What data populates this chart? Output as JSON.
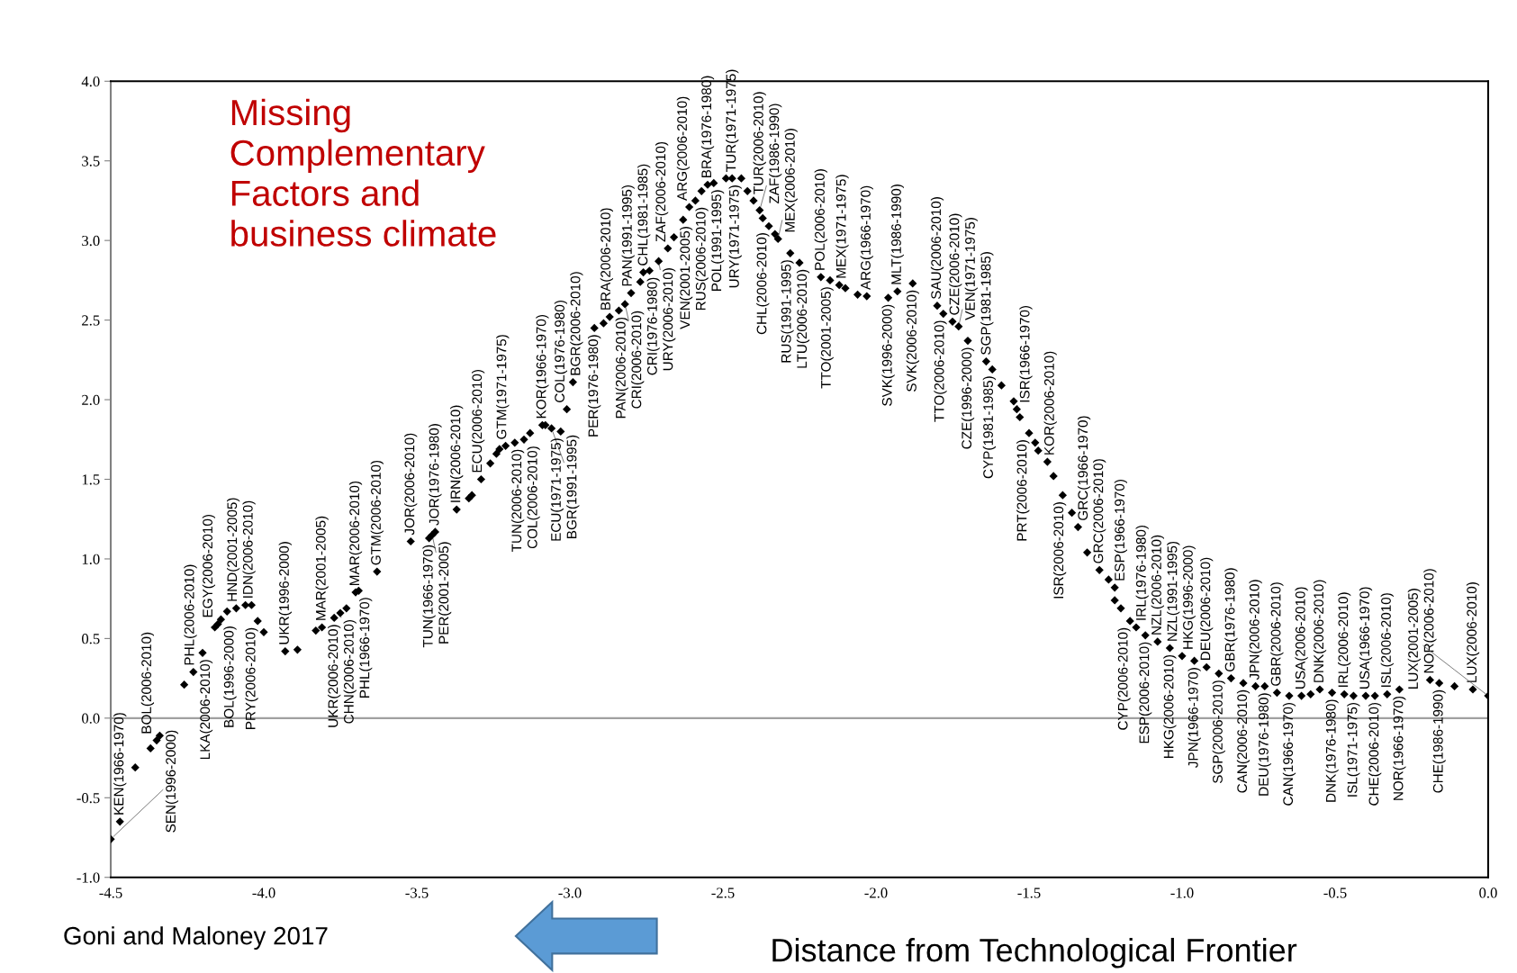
{
  "chart_data": {
    "type": "scatter",
    "xlabel": "Distance from Technological Frontier",
    "marker": "diamond",
    "grid": false,
    "legend": false,
    "xlim": [
      -4.5,
      0.0
    ],
    "xticks": [
      -4.5,
      {
        "value": -4,
        "label": "-4.0"
      },
      -3.5,
      {
        "value": -3,
        "label": "-3.0"
      },
      -2.5,
      {
        "value": -2,
        "label": "-2.0"
      },
      -1.5,
      {
        "value": -1,
        "label": "-1.0"
      },
      -0.5,
      {
        "value": 0,
        "label": "0.0"
      }
    ],
    "ylim": [
      -1.0,
      4.0
    ],
    "yticks": [
      {
        "value": -1,
        "label": "-1.0"
      },
      -0.5,
      {
        "value": 0,
        "label": "0.0"
      },
      0.5,
      {
        "value": 1,
        "label": "1.0"
      },
      1.5,
      {
        "value": 2,
        "label": "2.0"
      },
      2.5,
      {
        "value": 3,
        "label": "3.0"
      },
      3.5,
      {
        "value": 4,
        "label": "4.0"
      }
    ],
    "ref_lines": [
      {
        "axis": "y",
        "value": 0,
        "color": "#a0a0a0"
      }
    ],
    "series": [
      {
        "color": "#000000",
        "x": [
          -4.5,
          -4.47,
          -4.42,
          -4.37,
          -4.35,
          -4.34,
          -4.26,
          -4.23,
          -4.2,
          -4.16,
          -4.15,
          -4.14,
          -4.12,
          -4.09,
          -4.06,
          -4.04,
          -4.02,
          -4.0,
          -3.93,
          -3.89,
          -3.83,
          -3.81,
          -3.77,
          -3.75,
          -3.73,
          -3.7,
          -3.69,
          -3.63,
          -3.52,
          -3.46,
          -3.45,
          -3.44,
          -3.37,
          -3.33,
          -3.32,
          -3.29,
          -3.26,
          -3.24,
          -3.23,
          -3.21,
          -3.18,
          -3.15,
          -3.13,
          -3.09,
          -3.08,
          -3.06,
          -3.03,
          -3.01,
          -2.99,
          -2.92,
          -2.89,
          -2.87,
          -2.84,
          -2.82,
          -2.8,
          -2.77,
          -2.76,
          -2.74,
          -2.71,
          -2.68,
          -2.66,
          -2.63,
          -2.61,
          -2.59,
          -2.57,
          -2.55,
          -2.53,
          -2.49,
          -2.47,
          -2.44,
          -2.42,
          -2.4,
          -2.38,
          -2.37,
          -2.35,
          -2.33,
          -2.32,
          -2.28,
          -2.25,
          -2.18,
          -2.15,
          -2.12,
          -2.1,
          -2.06,
          -2.03,
          -1.96,
          -1.93,
          -1.88,
          -1.8,
          -1.78,
          -1.75,
          -1.73,
          -1.7,
          -1.64,
          -1.62,
          -1.59,
          -1.55,
          -1.54,
          -1.53,
          -1.5,
          -1.48,
          -1.47,
          -1.44,
          -1.42,
          -1.39,
          -1.36,
          -1.34,
          -1.31,
          -1.27,
          -1.24,
          -1.22,
          -1.22,
          -1.2,
          -1.17,
          -1.15,
          -1.12,
          -1.08,
          -1.04,
          -1.0,
          -0.96,
          -0.92,
          -0.88,
          -0.84,
          -0.8,
          -0.76,
          -0.73,
          -0.69,
          -0.65,
          -0.61,
          -0.58,
          -0.55,
          -0.51,
          -0.47,
          -0.44,
          -0.4,
          -0.37,
          -0.33,
          -0.29,
          -0.19,
          -0.16,
          -0.11,
          -0.05,
          0.0
        ],
        "values": [
          -0.76,
          -0.65,
          -0.31,
          -0.19,
          -0.14,
          -0.11,
          0.21,
          0.29,
          0.41,
          0.57,
          0.59,
          0.62,
          0.67,
          0.69,
          0.71,
          0.71,
          0.61,
          0.54,
          0.42,
          0.43,
          0.55,
          0.57,
          0.63,
          0.66,
          0.69,
          0.79,
          0.8,
          0.92,
          1.11,
          1.13,
          1.15,
          1.17,
          1.31,
          1.38,
          1.4,
          1.5,
          1.6,
          1.66,
          1.69,
          1.71,
          1.73,
          1.75,
          1.79,
          1.84,
          1.84,
          1.82,
          1.8,
          1.94,
          2.11,
          2.45,
          2.48,
          2.52,
          2.56,
          2.6,
          2.67,
          2.74,
          2.8,
          2.81,
          2.87,
          2.95,
          3.02,
          3.13,
          3.21,
          3.25,
          3.31,
          3.35,
          3.36,
          3.39,
          3.39,
          3.39,
          3.31,
          3.25,
          3.19,
          3.14,
          3.09,
          3.04,
          3.01,
          2.92,
          2.86,
          2.77,
          2.75,
          2.72,
          2.7,
          2.66,
          2.65,
          2.64,
          2.68,
          2.73,
          2.59,
          2.54,
          2.49,
          2.46,
          2.37,
          2.24,
          2.19,
          2.09,
          1.99,
          1.94,
          1.89,
          1.79,
          1.73,
          1.68,
          1.61,
          1.52,
          1.4,
          1.29,
          1.2,
          1.04,
          0.93,
          0.87,
          0.82,
          0.74,
          0.69,
          0.61,
          0.57,
          0.52,
          0.48,
          0.44,
          0.39,
          0.36,
          0.32,
          0.28,
          0.25,
          0.22,
          0.2,
          0.2,
          0.16,
          0.14,
          0.14,
          0.15,
          0.18,
          0.16,
          0.15,
          0.14,
          0.14,
          0.14,
          0.15,
          0.18,
          0.24,
          0.22,
          0.2,
          0.18,
          0.14
        ]
      }
    ],
    "annotations": [
      "Missing\nComplementary\nFactors and\nbusiness climate",
      "Goni and Maloney 2017",
      {
        "text": "SEN(1996-2000)",
        "x": -4.5,
        "y": -0.76
      },
      {
        "text": "KEN(1966-1970)",
        "x": -4.47,
        "y": -0.65
      },
      {
        "text": "BOL(2006-2010)",
        "x": -4.35,
        "y": -0.14
      },
      {
        "text": "PHL(2006-2010)",
        "x": -4.23,
        "y": 0.29
      },
      {
        "text": "LKA(2006-2010)",
        "x": -4.2,
        "y": 0.41
      },
      {
        "text": "EGY(2006-2010)",
        "x": -4.15,
        "y": 0.59
      },
      {
        "text": "BOL(1996-2000)",
        "x": -4.14,
        "y": 0.62
      },
      {
        "text": "HND(2001-2005)",
        "x": -4.09,
        "y": 0.69
      },
      {
        "text": "IDN(2006-2010)",
        "x": -4.06,
        "y": 0.71
      },
      {
        "text": "PRY(2006-2010)",
        "x": -4.02,
        "y": 0.61
      },
      {
        "text": "UKR(1996-2000)",
        "x": -3.93,
        "y": 0.42
      },
      {
        "text": "MAR(2001-2005)",
        "x": -3.81,
        "y": 0.57
      },
      {
        "text": "UKR(2006-2010)",
        "x": -3.77,
        "y": 0.63
      },
      {
        "text": "CHN(2006-2010)",
        "x": -3.75,
        "y": 0.66
      },
      {
        "text": "MAR(2006-2010)",
        "x": -3.7,
        "y": 0.79
      },
      {
        "text": "PHL(1966-1970)",
        "x": -3.69,
        "y": 0.8
      },
      {
        "text": "GTM(2006-2010)",
        "x": -3.63,
        "y": 0.92
      },
      {
        "text": "JOR(2006-2010)",
        "x": -3.52,
        "y": 1.11
      },
      {
        "text": "TUN(1966-1970)",
        "x": -3.46,
        "y": 1.13
      },
      {
        "text": "PER(2001-2005)",
        "x": -3.45,
        "y": 1.15
      },
      {
        "text": "JOR(1976-1980)",
        "x": -3.44,
        "y": 1.17
      },
      {
        "text": "IRN(2006-2010)",
        "x": -3.37,
        "y": 1.31
      },
      {
        "text": "ECU(2006-2010)",
        "x": -3.29,
        "y": 1.5
      },
      {
        "text": "GTM(1971-1975)",
        "x": -3.21,
        "y": 1.71
      },
      {
        "text": "TUN(2006-2010)",
        "x": -3.18,
        "y": 1.73
      },
      {
        "text": "COL(2006-2010)",
        "x": -3.15,
        "y": 1.75
      },
      {
        "text": "KOR(1966-1970)",
        "x": -3.09,
        "y": 1.84
      },
      {
        "text": "BGR(1991-1995)",
        "x": -3.06,
        "y": 1.82
      },
      {
        "text": "ECU(1971-1975)",
        "x": -3.03,
        "y": 1.8
      },
      {
        "text": "COL(1976-1980)",
        "x": -3.01,
        "y": 1.94
      },
      {
        "text": "BGR(2006-2010)",
        "x": -2.99,
        "y": 2.11
      },
      {
        "text": "PER(1976-1980)",
        "x": -2.92,
        "y": 2.45
      },
      {
        "text": "BRA(2006-2010)",
        "x": -2.87,
        "y": 2.52
      },
      {
        "text": "PAN(2006-2010)",
        "x": -2.84,
        "y": 2.56
      },
      {
        "text": "CRI(2006-2010)",
        "x": -2.82,
        "y": 2.6
      },
      {
        "text": "PAN(1991-1995)",
        "x": -2.8,
        "y": 2.67
      },
      {
        "text": "CHL(1981-1985)",
        "x": -2.76,
        "y": 2.8
      },
      {
        "text": "CRI(1976-1980)",
        "x": -2.74,
        "y": 2.81
      },
      {
        "text": "URY(2006-2010)",
        "x": -2.71,
        "y": 2.87
      },
      {
        "text": "ZAF(2006-2010)",
        "x": -2.68,
        "y": 2.95
      },
      {
        "text": "VEN(2001-2005)",
        "x": -2.63,
        "y": 3.13
      },
      {
        "text": "ARG(2006-2010)",
        "x": -2.61,
        "y": 3.21
      },
      {
        "text": "RUS(2006-2010)",
        "x": -2.59,
        "y": 3.25
      },
      {
        "text": "BRA(1976-1980)",
        "x": -2.55,
        "y": 3.35
      },
      {
        "text": "POL(1991-1995)",
        "x": -2.53,
        "y": 3.36
      },
      {
        "text": "TUR(1971-1975)",
        "x": -2.47,
        "y": 3.39
      },
      {
        "text": "URY(1971-1975)",
        "x": -2.44,
        "y": 3.39
      },
      {
        "text": "TUR(2006-2010)",
        "x": -2.4,
        "y": 3.25
      },
      {
        "text": "ZAF(1986-1990)",
        "x": -2.38,
        "y": 3.19
      },
      {
        "text": "CHL(2006-2010)",
        "x": -2.35,
        "y": 3.09
      },
      {
        "text": "MEX(2006-2010)",
        "x": -2.32,
        "y": 3.01
      },
      {
        "text": "RUS(1991-1995)",
        "x": -2.28,
        "y": 2.92
      },
      {
        "text": "LTU(2006-2010)",
        "x": -2.25,
        "y": 2.86
      },
      {
        "text": "POL(2006-2010)",
        "x": -2.18,
        "y": 2.77
      },
      {
        "text": "TTO(2001-2005)",
        "x": -2.15,
        "y": 2.75
      },
      {
        "text": "MEX(1971-1975)",
        "x": -2.12,
        "y": 2.72
      },
      {
        "text": "ARG(1966-1970)",
        "x": -2.03,
        "y": 2.65
      },
      {
        "text": "SVK(1996-2000)",
        "x": -1.96,
        "y": 2.64
      },
      {
        "text": "MLT(1986-1990)",
        "x": -1.93,
        "y": 2.68
      },
      {
        "text": "SVK(2006-2010)",
        "x": -1.88,
        "y": 2.73
      },
      {
        "text": "SAU(2006-2010)",
        "x": -1.8,
        "y": 2.59
      },
      {
        "text": "TTO(2006-2010)",
        "x": -1.78,
        "y": 2.54
      },
      {
        "text": "CZE(2006-2010)",
        "x": -1.75,
        "y": 2.49
      },
      {
        "text": "VEN(1971-1975)",
        "x": -1.73,
        "y": 2.46
      },
      {
        "text": "CZE(1996-2000)",
        "x": -1.7,
        "y": 2.37
      },
      {
        "text": "SGP(1981-1985)",
        "x": -1.64,
        "y": 2.24
      },
      {
        "text": "CYP(1981-1985)",
        "x": -1.62,
        "y": 2.19
      },
      {
        "text": "ISR(1966-1970)",
        "x": -1.54,
        "y": 1.94
      },
      {
        "text": "PRT(2006-2010)",
        "x": -1.5,
        "y": 1.79
      },
      {
        "text": "KOR(2006-2010)",
        "x": -1.44,
        "y": 1.61
      },
      {
        "text": "ISR(2006-2010)",
        "x": -1.39,
        "y": 1.4
      },
      {
        "text": "GRC(1966-1970)",
        "x": -1.34,
        "y": 1.2
      },
      {
        "text": "GRC(2006-2010)",
        "x": -1.27,
        "y": 0.93
      },
      {
        "text": "ESP(1966-1970)",
        "x": -1.22,
        "y": 0.82
      },
      {
        "text": "CYP(2006-2010)",
        "x": -1.17,
        "y": 0.61
      },
      {
        "text": "IRL(1976-1980)",
        "x": -1.15,
        "y": 0.57
      },
      {
        "text": "ESP(2006-2010)",
        "x": -1.12,
        "y": 0.52
      },
      {
        "text": "NZL(2006-2010)",
        "x": -1.08,
        "y": 0.48
      },
      {
        "text": "HKG(2006-2010)",
        "x": -1.04,
        "y": 0.44
      },
      {
        "text": "NZL(1991-1995)",
        "x": -1.04,
        "y": 0.44
      },
      {
        "text": "HKG(1996-2000)",
        "x": -1.0,
        "y": 0.39
      },
      {
        "text": "JPN(1966-1970)",
        "x": -0.96,
        "y": 0.36
      },
      {
        "text": "DEU(2006-2010)",
        "x": -0.92,
        "y": 0.32
      },
      {
        "text": "SGP(2006-2010)",
        "x": -0.88,
        "y": 0.28
      },
      {
        "text": "GBR(1976-1980)",
        "x": -0.84,
        "y": 0.25
      },
      {
        "text": "CAN(2006-2010)",
        "x": -0.8,
        "y": 0.22
      },
      {
        "text": "JPN(2006-2010)",
        "x": -0.76,
        "y": 0.2
      },
      {
        "text": "DEU(1976-1980)",
        "x": -0.73,
        "y": 0.2
      },
      {
        "text": "GBR(2006-2010)",
        "x": -0.69,
        "y": 0.16
      },
      {
        "text": "CAN(1966-1970)",
        "x": -0.65,
        "y": 0.14
      },
      {
        "text": "USA(2006-2010)",
        "x": -0.61,
        "y": 0.14
      },
      {
        "text": "DNK(2006-2010)",
        "x": -0.55,
        "y": 0.18
      },
      {
        "text": "DNK(1976-1980)",
        "x": -0.51,
        "y": 0.16
      },
      {
        "text": "IRL(2006-2010)",
        "x": -0.47,
        "y": 0.15
      },
      {
        "text": "ISL(1971-1975)",
        "x": -0.44,
        "y": 0.14
      },
      {
        "text": "USA(1966-1970)",
        "x": -0.4,
        "y": 0.14
      },
      {
        "text": "CHE(2006-2010)",
        "x": -0.37,
        "y": 0.14
      },
      {
        "text": "ISL(2006-2010)",
        "x": -0.33,
        "y": 0.15
      },
      {
        "text": "NOR(1966-1970)",
        "x": -0.29,
        "y": 0.18
      },
      {
        "text": "NOR(2006-2010)",
        "x": -0.19,
        "y": 0.24
      },
      {
        "text": "CHE(1986-1990)",
        "x": -0.16,
        "y": 0.22
      },
      {
        "text": "LUX(2006-2010)",
        "x": -0.05,
        "y": 0.18
      },
      {
        "text": "LUX(2001-2005)",
        "x": 0.0,
        "y": 0.14
      }
    ]
  }
}
